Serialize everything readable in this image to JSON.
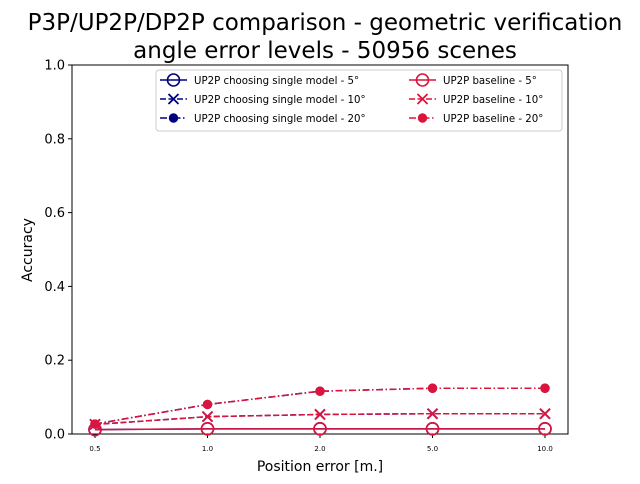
{
  "chart_data": {
    "type": "line",
    "title_line1": "P3P/UP2P/DP2P comparison - geometric verification",
    "title_line2": "angle error levels - 50956 scenes",
    "xlabel": "Position error [m.]",
    "ylabel": "Accuracy",
    "categories": [
      "0.5",
      "1.0",
      "2.0",
      "5.0",
      "10.0"
    ],
    "ylim": [
      0,
      1
    ],
    "yticks": [
      "0.0",
      "0.2",
      "0.4",
      "0.6",
      "0.8",
      "1.0"
    ],
    "grid": false,
    "legend_position": "top-right",
    "series": [
      {
        "name": "UP2P choosing single model - 5°",
        "color": "#000080",
        "linestyle": "solid",
        "marker": "circle-open",
        "values": [
          0.012,
          0.014,
          0.014,
          0.014,
          0.014
        ]
      },
      {
        "name": "UP2P choosing single model - 10°",
        "color": "#000080",
        "linestyle": "dashed",
        "marker": "x",
        "values": [
          0.026,
          0.047,
          0.053,
          0.055,
          0.055
        ]
      },
      {
        "name": "UP2P choosing single model - 20°",
        "color": "#000080",
        "linestyle": "dashdot",
        "marker": "circle-filled",
        "values": [
          0.027,
          0.08,
          0.116,
          0.124,
          0.124
        ]
      },
      {
        "name": "UP2P baseline - 5°",
        "color": "#dc143c",
        "linestyle": "solid",
        "marker": "circle-open",
        "values": [
          0.012,
          0.014,
          0.014,
          0.014,
          0.014
        ]
      },
      {
        "name": "UP2P baseline - 10°",
        "color": "#dc143c",
        "linestyle": "dashed",
        "marker": "x",
        "values": [
          0.026,
          0.047,
          0.053,
          0.055,
          0.055
        ]
      },
      {
        "name": "UP2P baseline - 20°",
        "color": "#dc143c",
        "linestyle": "dashdot",
        "marker": "circle-filled",
        "values": [
          0.027,
          0.08,
          0.116,
          0.124,
          0.124
        ]
      }
    ]
  }
}
